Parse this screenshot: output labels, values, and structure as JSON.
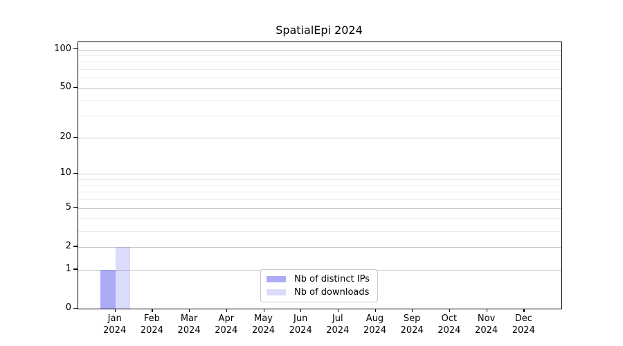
{
  "chart_data": {
    "type": "bar",
    "title": "SpatialEpi 2024",
    "categories": [
      "Jan",
      "Feb",
      "Mar",
      "Apr",
      "May",
      "Jun",
      "Jul",
      "Aug",
      "Sep",
      "Oct",
      "Nov",
      "Dec"
    ],
    "category_year": "2024",
    "series": [
      {
        "name": "Nb of distinct IPs",
        "color": "#6e6ef0",
        "alpha": 0.58,
        "values": [
          1,
          0,
          0,
          0,
          0,
          0,
          0,
          0,
          0,
          0,
          0,
          0
        ]
      },
      {
        "name": "Nb of downloads",
        "color": "#6e6ef0",
        "alpha": 0.25,
        "values": [
          2,
          0,
          0,
          0,
          0,
          0,
          0,
          0,
          0,
          0,
          0,
          0
        ]
      }
    ],
    "y_axis": {
      "scale": "log1p",
      "ticks": [
        0,
        1,
        2,
        5,
        10,
        20,
        50,
        100
      ],
      "minor_ticks": [
        3,
        4,
        6,
        7,
        8,
        9,
        30,
        40,
        60,
        70,
        80,
        90
      ],
      "max": 114
    },
    "grid": "on",
    "legend_position": "bottom-center",
    "colors": {
      "grid_major": "#c9c9c9",
      "grid_minor": "#ececec",
      "grid_top_line": "#bfbfbf",
      "spine": "#000000",
      "text": "#000000",
      "background": "#ffffff"
    }
  }
}
